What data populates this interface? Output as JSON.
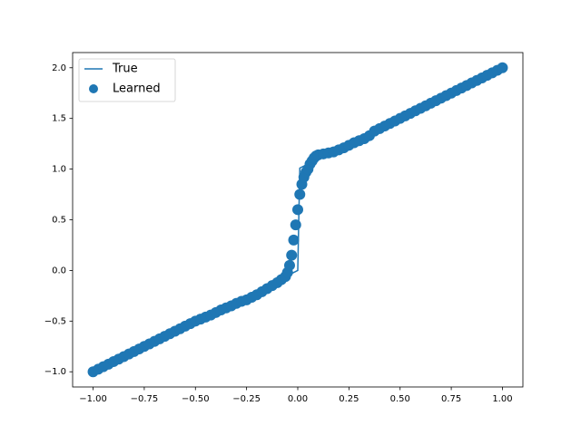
{
  "chart_data": {
    "type": "line",
    "xlim": [
      -1.1,
      1.1
    ],
    "ylim": [
      -1.15,
      2.15
    ],
    "xticks": [
      {
        "value": -1,
        "label": "−1.00"
      },
      {
        "value": -0.75,
        "label": "−0.75"
      },
      {
        "value": -0.5,
        "label": "−0.50"
      },
      {
        "value": -0.25,
        "label": "−0.25"
      },
      {
        "value": 0,
        "label": "0.00"
      },
      {
        "value": 0.25,
        "label": "0.25"
      },
      {
        "value": 0.5,
        "label": "0.50"
      },
      {
        "value": 0.75,
        "label": "0.75"
      },
      {
        "value": 1,
        "label": "1.00"
      }
    ],
    "yticks": [
      {
        "value": -1,
        "label": "−1.0"
      },
      {
        "value": -0.5,
        "label": "−0.5"
      },
      {
        "value": 0,
        "label": "0.0"
      },
      {
        "value": 0.5,
        "label": "0.5"
      },
      {
        "value": 1,
        "label": "1.0"
      },
      {
        "value": 1.5,
        "label": "1.5"
      },
      {
        "value": 2,
        "label": "2.0"
      }
    ],
    "legend": "upper left",
    "series": [
      {
        "name": "True",
        "type": "line",
        "color": "#1f77b4",
        "x": [
          -1,
          -0.01,
          0,
          0.01,
          1
        ],
        "values": [
          -1,
          -0.01,
          0,
          1.01,
          2
        ]
      },
      {
        "name": "Learned",
        "type": "scatter",
        "color": "#1f77b4",
        "x": [
          -1,
          -0.975,
          -0.95,
          -0.925,
          -0.9,
          -0.875,
          -0.85,
          -0.825,
          -0.8,
          -0.775,
          -0.75,
          -0.725,
          -0.7,
          -0.675,
          -0.65,
          -0.625,
          -0.6,
          -0.575,
          -0.55,
          -0.525,
          -0.5,
          -0.475,
          -0.45,
          -0.425,
          -0.4,
          -0.375,
          -0.35,
          -0.325,
          -0.3,
          -0.275,
          -0.25,
          -0.225,
          -0.2,
          -0.175,
          -0.15,
          -0.125,
          -0.1,
          -0.08,
          -0.06,
          -0.05,
          -0.04,
          -0.03,
          -0.02,
          -0.01,
          0,
          0.01,
          0.02,
          0.03,
          0.04,
          0.05,
          0.06,
          0.07,
          0.08,
          0.09,
          0.1,
          0.125,
          0.15,
          0.175,
          0.2,
          0.225,
          0.25,
          0.275,
          0.3,
          0.325,
          0.35,
          0.375,
          0.4,
          0.425,
          0.45,
          0.475,
          0.5,
          0.525,
          0.55,
          0.575,
          0.6,
          0.625,
          0.65,
          0.675,
          0.7,
          0.725,
          0.75,
          0.775,
          0.8,
          0.825,
          0.85,
          0.875,
          0.9,
          0.925,
          0.95,
          0.975,
          1
        ],
        "values": [
          -1,
          -0.975,
          -0.95,
          -0.925,
          -0.9,
          -0.875,
          -0.85,
          -0.825,
          -0.8,
          -0.775,
          -0.75,
          -0.725,
          -0.7,
          -0.675,
          -0.65,
          -0.625,
          -0.6,
          -0.575,
          -0.55,
          -0.525,
          -0.5,
          -0.48,
          -0.46,
          -0.44,
          -0.415,
          -0.39,
          -0.37,
          -0.35,
          -0.325,
          -0.305,
          -0.29,
          -0.265,
          -0.24,
          -0.21,
          -0.18,
          -0.15,
          -0.12,
          -0.09,
          -0.06,
          -0.02,
          0.05,
          0.15,
          0.3,
          0.45,
          0.6,
          0.75,
          0.85,
          0.92,
          0.97,
          1.0,
          1.05,
          1.08,
          1.11,
          1.13,
          1.14,
          1.15,
          1.16,
          1.17,
          1.19,
          1.21,
          1.235,
          1.26,
          1.28,
          1.3,
          1.33,
          1.375,
          1.4,
          1.425,
          1.45,
          1.475,
          1.5,
          1.525,
          1.55,
          1.575,
          1.6,
          1.625,
          1.65,
          1.675,
          1.7,
          1.725,
          1.75,
          1.775,
          1.8,
          1.825,
          1.85,
          1.875,
          1.9,
          1.925,
          1.95,
          1.975,
          2
        ]
      }
    ]
  }
}
